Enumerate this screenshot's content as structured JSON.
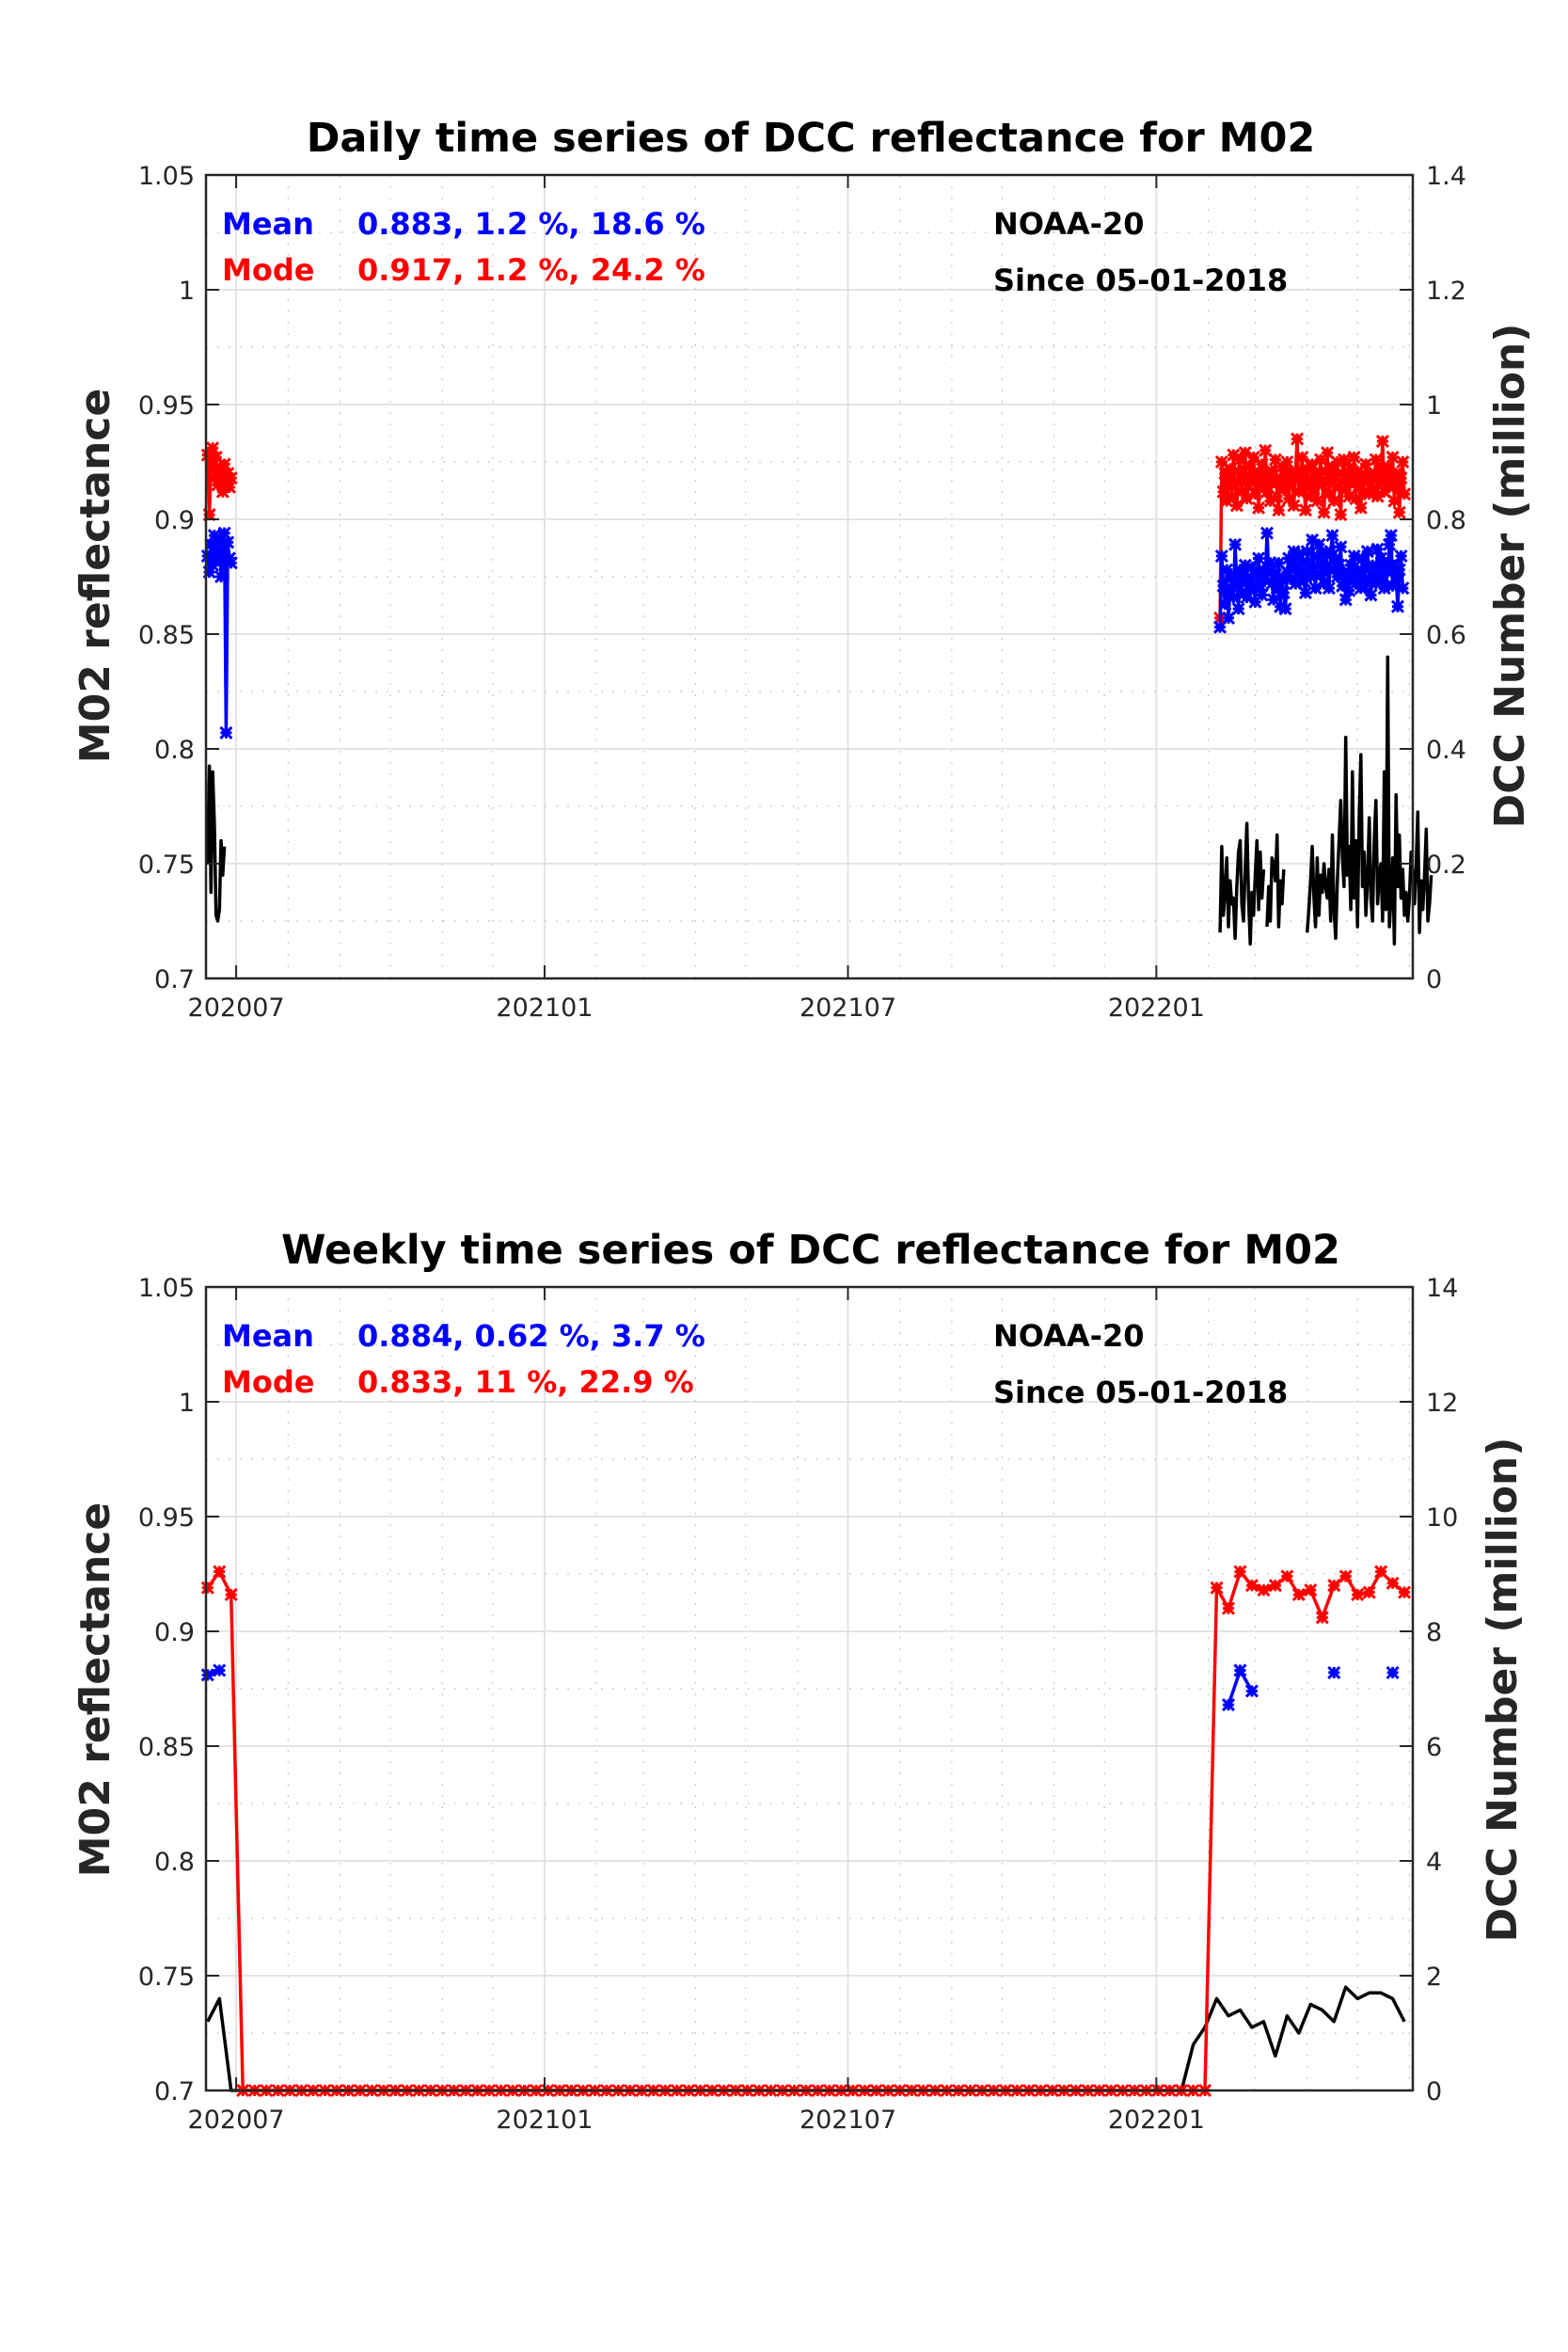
{
  "chart_data": [
    {
      "type": "line",
      "title": "Daily time series of DCC reflectance for M02",
      "xlabel": "",
      "ylabel": "M02 reflectance",
      "ylabel_right": "DCC Number (million)",
      "ylim": [
        0.7,
        1.05
      ],
      "ylim_right": [
        0,
        1.4
      ],
      "yticks": [
        "0.7",
        "0.75",
        "0.8",
        "0.85",
        "0.9",
        "0.95",
        "1",
        "1.05"
      ],
      "yticks_right": [
        "0",
        "0.2",
        "0.4",
        "0.6",
        "0.8",
        "1",
        "1.2",
        "1.4"
      ],
      "xlim": [
        "2020-06-13",
        "2022-06-03"
      ],
      "xticks": [
        {
          "label": "202007",
          "date": "2020-07-01"
        },
        {
          "label": "202101",
          "date": "2021-01-01"
        },
        {
          "label": "202107",
          "date": "2021-07-01"
        },
        {
          "label": "202201",
          "date": "2022-01-01"
        }
      ],
      "grid": true,
      "annotations": {
        "mean_label": "Mean",
        "mean_stats": "0.883, 1.2 %, 18.6 %",
        "mode_label": "Mode",
        "mode_stats": "0.917, 1.2 %, 24.2 %",
        "satellite": "NOAA-20",
        "since": "Since 05-01-2018"
      },
      "series": [
        {
          "name": "Mode",
          "color": "#ff0000",
          "axis": "left",
          "marker": "x",
          "segments": [
            {
              "start": "2020-06-14",
              "values": [
                0.928,
                0.902,
                0.925,
                0.931,
                0.918,
                0.927,
                0.915,
                0.922,
                0.919,
                0.912,
                0.924,
                0.917,
                0.92,
                0.914,
                0.918
              ]
            },
            {
              "start": "2022-02-08",
              "values": [
                0.857,
                0.925,
                0.912,
                0.92,
                0.908,
                0.916,
                0.922,
                0.91,
                0.928,
                0.915,
                0.906,
                0.921,
                0.926,
                0.912,
                0.918,
                0.929,
                0.909,
                0.915,
                0.923,
                0.917,
                0.927,
                0.911,
                0.92,
                0.905,
                0.918,
                0.924,
                0.914,
                0.93,
                0.912,
                0.919,
                0.908,
                0.921,
                0.916,
                0.926,
                0.91,
                0.904,
                0.918,
                0.923,
                0.913,
                0.919,
                0.925,
                0.909,
                0.917,
                0.921,
                0.906,
                0.92,
                0.935,
                0.912,
                0.918,
                0.927,
                0.915,
                0.904,
                0.922,
                0.917,
                0.91,
                0.924,
                0.913,
                0.92,
                0.908,
                0.918,
                0.926,
                0.915,
                0.903,
                0.921,
                0.929,
                0.911,
                0.917,
                0.923,
                0.908,
                0.919,
                0.925,
                0.914,
                0.902,
                0.92,
                0.926,
                0.913,
                0.918,
                0.91,
                0.922,
                0.916,
                0.927,
                0.909,
                0.921,
                0.915,
                0.905,
                0.919,
                0.912,
                0.924,
                0.917,
                0.911,
                0.92,
                0.913,
                0.918,
                0.926,
                0.91,
                0.922,
                0.916,
                0.934,
                0.912,
                0.919,
                0.923,
                0.914,
                0.917,
                0.927,
                0.908,
                0.92,
                0.915,
                0.903,
                0.918,
                0.925,
                0.911
              ]
            }
          ]
        },
        {
          "name": "Mean",
          "color": "#0000ff",
          "axis": "left",
          "marker": "x",
          "segments": [
            {
              "start": "2020-06-14",
              "values": [
                0.884,
                0.877,
                0.889,
                0.88,
                0.893,
                0.886,
                0.882,
                0.891,
                0.875,
                0.887,
                0.894,
                0.807,
                0.89,
                0.883,
                0.881
              ]
            },
            {
              "start": "2022-02-08",
              "values": [
                0.853,
                0.884,
                0.871,
                0.863,
                0.878,
                0.857,
                0.869,
                0.875,
                0.866,
                0.889,
                0.872,
                0.861,
                0.878,
                0.868,
                0.876,
                0.88,
                0.866,
                0.874,
                0.869,
                0.879,
                0.872,
                0.864,
                0.876,
                0.883,
                0.871,
                0.867,
                0.878,
                0.874,
                0.894,
                0.878,
                0.881,
                0.872,
                0.865,
                0.876,
                0.87,
                0.881,
                0.862,
                0.874,
                0.868,
                0.861,
                0.877,
                0.883,
                0.874,
                0.881,
                0.886,
                0.872,
                0.879,
                0.885,
                0.876,
                0.881,
                0.873,
                0.868,
                0.886,
                0.88,
                0.875,
                0.891,
                0.877,
                0.87,
                0.884,
                0.889,
                0.876,
                0.881,
                0.872,
                0.885,
                0.879,
                0.87,
                0.886,
                0.893,
                0.878,
                0.883,
                0.875,
                0.88,
                0.888,
                0.871,
                0.877,
                0.865,
                0.874,
                0.869,
                0.88,
                0.876,
                0.884,
                0.872,
                0.878,
                0.875,
                0.87,
                0.883,
                0.871,
                0.879,
                0.886,
                0.874,
                0.867,
                0.88,
                0.875,
                0.872,
                0.887,
                0.878,
                0.883,
                0.874,
                0.87,
                0.881,
                0.877,
                0.889,
                0.893,
                0.871,
                0.88,
                0.875,
                0.862,
                0.878,
                0.884,
                0.87
              ]
            }
          ]
        },
        {
          "name": "DCC Number",
          "color": "#000000",
          "axis": "right",
          "marker": "none",
          "segments": [
            {
              "start": "2020-06-14",
              "values": [
                0.2,
                0.37,
                0.15,
                0.36,
                0.27,
                0.11,
                0.1,
                0.12,
                0.24,
                0.18,
                0.23
              ]
            },
            {
              "start": "2022-02-08",
              "values": [
                0.08,
                0.23,
                0.11,
                0.15,
                0.21,
                0.09,
                0.17,
                0.13,
                0.14,
                0.07,
                0.16,
                0.22,
                0.24,
                0.13,
                0.1,
                0.19,
                0.27,
                0.14,
                0.06,
                0.15,
                0.11,
                0.18,
                0.24,
                0.12,
                0.22,
                0.14,
                0.19,
                null,
                0.09,
                0.16,
                0.1,
                0.21,
                0.2,
                0.17,
                0.25,
                0.09,
                0.17,
                0.13,
                0.19
              ]
            },
            {
              "start": "2022-04-01",
              "values": [
                0.08,
                0.12,
                0.17,
                0.23,
                0.14,
                0.09,
                0.21,
                0.11,
                0.18,
                0.15,
                0.2,
                0.16,
                0.14,
                0.19,
                0.1,
                0.25,
                0.12,
                0.07,
                0.17,
                0.24,
                0.31,
                0.21,
                0.16,
                0.42,
                0.18,
                0.23,
                0.12,
                0.36,
                0.14,
                0.24,
                0.09,
                0.28,
                0.39,
                0.16,
                0.22,
                0.11,
                0.17,
                0.28,
                0.14,
                0.1,
                0.24,
                0.31,
                0.13,
                0.18,
                0.2,
                0.1,
                0.36,
                0.12,
                0.56,
                0.09,
                0.14,
                0.21,
                0.06,
                0.32,
                0.16,
                0.25,
                0.14,
                0.19,
                0.11,
                0.15,
                0.1,
                0.14,
                0.22,
                0.18,
                0.13,
                0.2,
                0.29,
                0.08,
                0.17,
                0.12,
                0.18,
                0.26,
                0.1,
                0.13,
                0.18
              ]
            }
          ]
        }
      ]
    },
    {
      "type": "line",
      "title": "Weekly time series of DCC reflectance for M02",
      "xlabel": "",
      "ylabel": "M02 reflectance",
      "ylabel_right": "DCC Number (million)",
      "ylim": [
        0.7,
        1.05
      ],
      "ylim_right": [
        0,
        14
      ],
      "yticks": [
        "0.7",
        "0.75",
        "0.8",
        "0.85",
        "0.9",
        "0.95",
        "1",
        "1.05"
      ],
      "yticks_right": [
        "0",
        "2",
        "4",
        "6",
        "8",
        "10",
        "12",
        "14"
      ],
      "xlim": [
        "2020-06-13",
        "2022-06-03"
      ],
      "xticks": [
        {
          "label": "202007",
          "date": "2020-07-01"
        },
        {
          "label": "202101",
          "date": "2021-01-01"
        },
        {
          "label": "202107",
          "date": "2021-07-01"
        },
        {
          "label": "202201",
          "date": "2022-01-01"
        }
      ],
      "grid": true,
      "annotations": {
        "mean_label": "Mean",
        "mean_stats": "0.884, 0.62 %, 3.7 %",
        "mode_label": "Mode",
        "mode_stats": "0.833, 11 %, 22.9 %",
        "satellite": "NOAA-20",
        "since": "Since 05-01-2018"
      },
      "weekly": {
        "start": "2020-06-14",
        "step_days": 7,
        "count": 103,
        "mode_head": [
          0.919,
          0.926,
          0.916
        ],
        "mode_tail": [
          0.919,
          0.91,
          0.926,
          0.92,
          0.918,
          0.92,
          0.924,
          0.916,
          0.918,
          0.906,
          0.92,
          0.924,
          0.916,
          0.917,
          0.926,
          0.921,
          0.917
        ],
        "mean_head": [
          0.881,
          0.883
        ],
        "mean_tail": [
          null,
          0.868,
          0.883,
          0.874,
          null,
          null,
          null,
          null,
          null,
          null,
          0.882,
          null,
          null,
          null,
          null,
          0.882,
          null
        ],
        "count_head": [
          1.2,
          1.6
        ],
        "count_tail": [
          0.0,
          0.8,
          1.1,
          1.6,
          1.3,
          1.4,
          1.1,
          1.2,
          0.6,
          1.3,
          1.0,
          1.5,
          1.4,
          1.2,
          1.8,
          1.6,
          1.7,
          1.7,
          1.6,
          1.2
        ]
      }
    }
  ]
}
